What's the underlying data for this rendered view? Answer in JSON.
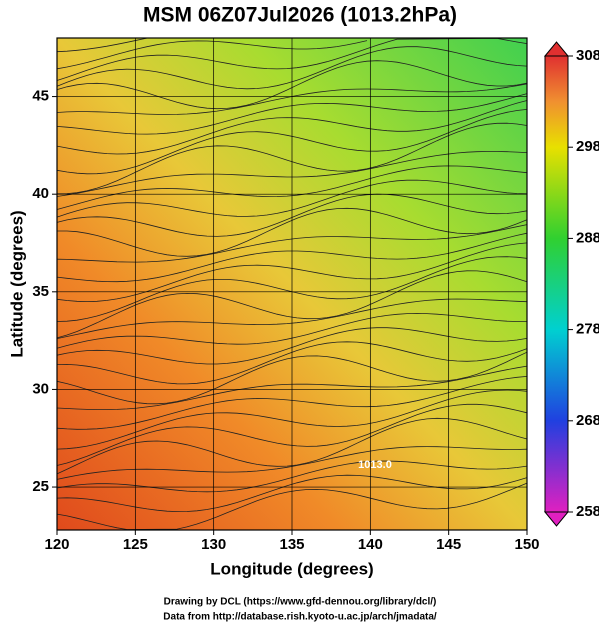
{
  "map": {
    "title": "MSM 06Z07Jul2026 (1013.2hPa)",
    "x_label": "Longitude (degrees)",
    "y_label": "Latitude  (degrees)",
    "xlim": [
      120,
      150
    ],
    "xticks": [
      120,
      125,
      130,
      135,
      140,
      145,
      150
    ],
    "ylim": [
      22.8,
      48
    ],
    "yticks": [
      25,
      30,
      35,
      40,
      45
    ],
    "grid": true,
    "contour_labels": [
      "1013.0"
    ],
    "colorbar": {
      "lim": [
        258,
        308
      ],
      "ticks": [
        258,
        268,
        278,
        288,
        298,
        308
      ]
    }
  },
  "footer": [
    "Drawing by DCL (https://www.gfd-dennou.org/library/dcl/)",
    "Data from http://database.rish.kyoto-u.ac.jp/arch/jmadata/"
  ]
}
